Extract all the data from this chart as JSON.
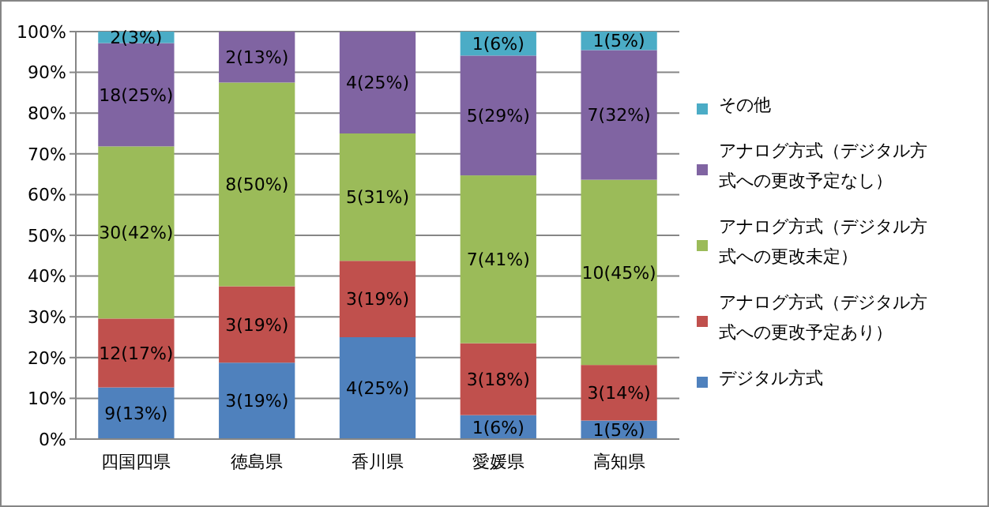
{
  "chart_data": {
    "type": "bar",
    "stacked": true,
    "categories": [
      "四国四県",
      "徳島県",
      "香川県",
      "愛媛県",
      "高知県"
    ],
    "series": [
      {
        "name": "デジタル方式",
        "color": "#4f81bd",
        "values": [
          12.68,
          18.75,
          25,
          5.88,
          4.55
        ],
        "value_labels": [
          "9(13%)",
          "3(19%)",
          "4(25%)",
          "1(6%)",
          "1(5%)"
        ]
      },
      {
        "name": "アナログ方式（デジタル方式への更改予定あり）",
        "color": "#c0504d",
        "values": [
          16.9,
          18.75,
          18.75,
          17.65,
          13.64
        ],
        "value_labels": [
          "12(17%)",
          "3(19%)",
          "3(19%)",
          "3(18%)",
          "3(14%)"
        ]
      },
      {
        "name": "アナログ方式（デジタル方式への更改未定）",
        "color": "#9bbb59",
        "values": [
          42.25,
          50,
          31.25,
          41.18,
          45.45
        ],
        "value_labels": [
          "30(42%)",
          "8(50%)",
          "5(31%)",
          "7(41%)",
          "10(45%)"
        ]
      },
      {
        "name": "アナログ方式（デジタル方式への更改予定なし）",
        "color": "#8064a2",
        "values": [
          25.35,
          12.5,
          25,
          29.41,
          31.82
        ],
        "value_labels": [
          "18(25%)",
          "2(13%)",
          "4(25%)",
          "5(29%)",
          "7(32%)"
        ]
      },
      {
        "name": "その他",
        "color": "#4bacc6",
        "values": [
          2.82,
          null,
          null,
          5.88,
          4.54
        ],
        "value_labels": [
          "2(3%)",
          null,
          null,
          "1(6%)",
          "1(5%)"
        ]
      }
    ],
    "ylim": [
      0,
      100
    ],
    "yticks": [
      {
        "value": 0,
        "label": "0%"
      },
      {
        "value": 10,
        "label": "10%"
      },
      {
        "value": 20,
        "label": "20%"
      },
      {
        "value": 30,
        "label": "30%"
      },
      {
        "value": 40,
        "label": "40%"
      },
      {
        "value": 50,
        "label": "50%"
      },
      {
        "value": 60,
        "label": "60%"
      },
      {
        "value": 70,
        "label": "70%"
      },
      {
        "value": 80,
        "label": "80%"
      },
      {
        "value": 90,
        "label": "90%"
      },
      {
        "value": 100,
        "label": "100%"
      }
    ],
    "grid": "y",
    "legend": "right"
  }
}
